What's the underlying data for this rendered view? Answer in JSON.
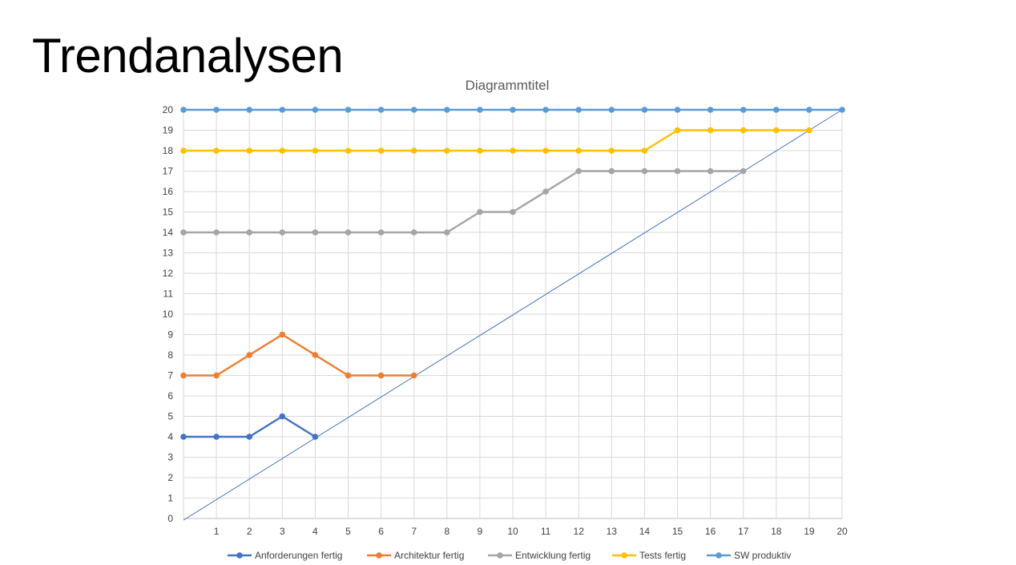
{
  "slide": {
    "title": "Trendanalysen"
  },
  "chart_data": {
    "type": "line",
    "title": "Diagrammtitel",
    "x": [
      0,
      1,
      2,
      3,
      4,
      5,
      6,
      7,
      8,
      9,
      10,
      11,
      12,
      13,
      14,
      15,
      16,
      17,
      18,
      19,
      20
    ],
    "xlim": [
      0,
      20
    ],
    "ylim": [
      0,
      20
    ],
    "x_tick_labels": [
      "1",
      "2",
      "3",
      "4",
      "5",
      "6",
      "7",
      "8",
      "9",
      "10",
      "11",
      "12",
      "13",
      "14",
      "15",
      "16",
      "17",
      "18",
      "19",
      "20"
    ],
    "y_tick_labels": [
      "0",
      "1",
      "2",
      "3",
      "4",
      "5",
      "6",
      "7",
      "8",
      "9",
      "10",
      "11",
      "12",
      "13",
      "14",
      "15",
      "16",
      "17",
      "18",
      "19",
      "20"
    ],
    "grid": true,
    "legend_position": "bottom",
    "series": [
      {
        "name": "Anforderungen fertig",
        "color": "#4472C4",
        "x": [
          0,
          1,
          2,
          3,
          4
        ],
        "values": [
          4,
          4,
          4,
          5,
          4
        ]
      },
      {
        "name": "Architektur fertig",
        "color": "#ED7D31",
        "x": [
          0,
          1,
          2,
          3,
          4,
          5,
          6,
          7
        ],
        "values": [
          7,
          7,
          8,
          9,
          8,
          7,
          7,
          7
        ]
      },
      {
        "name": "Entwicklung fertig",
        "color": "#A5A5A5",
        "x": [
          0,
          1,
          2,
          3,
          4,
          5,
          6,
          7,
          8,
          9,
          10,
          11,
          12,
          13,
          14,
          15,
          16,
          17
        ],
        "values": [
          14,
          14,
          14,
          14,
          14,
          14,
          14,
          14,
          14,
          15,
          15,
          16,
          17,
          17,
          17,
          17,
          17,
          17
        ]
      },
      {
        "name": "Tests fertig",
        "color": "#FFC000",
        "x": [
          0,
          1,
          2,
          3,
          4,
          5,
          6,
          7,
          8,
          9,
          10,
          11,
          12,
          13,
          14,
          15,
          16,
          17,
          18,
          19
        ],
        "values": [
          18,
          18,
          18,
          18,
          18,
          18,
          18,
          18,
          18,
          18,
          18,
          18,
          18,
          18,
          18,
          19,
          19,
          19,
          19,
          19
        ]
      },
      {
        "name": "SW produktiv",
        "color": "#5B9BD5",
        "x": [
          0,
          1,
          2,
          3,
          4,
          5,
          6,
          7,
          8,
          9,
          10,
          11,
          12,
          13,
          14,
          15,
          16,
          17,
          18,
          19,
          20
        ],
        "values": [
          20,
          20,
          20,
          20,
          20,
          20,
          20,
          20,
          20,
          20,
          20,
          20,
          20,
          20,
          20,
          20,
          20,
          20,
          20,
          20,
          20
        ]
      }
    ],
    "reference_line": {
      "color": "#4472C4",
      "x": [
        0,
        20
      ],
      "values": [
        0,
        20
      ]
    }
  }
}
